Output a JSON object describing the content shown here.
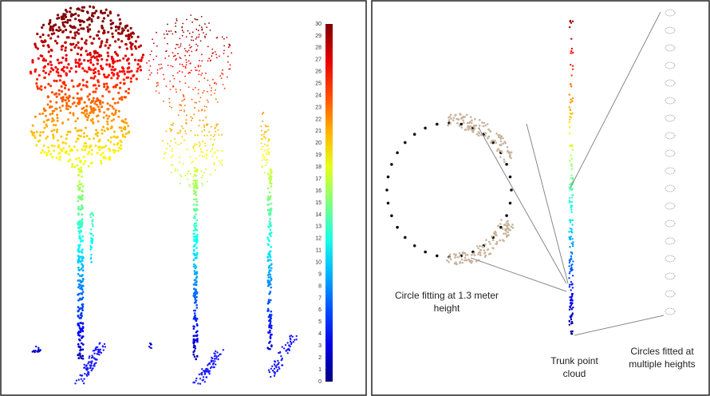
{
  "colorbar": {
    "ticks": [
      0,
      1,
      2,
      3,
      4,
      5,
      6,
      7,
      8,
      9,
      10,
      11,
      12,
      13,
      14,
      15,
      16,
      17,
      18,
      19,
      20,
      21,
      22,
      23,
      24,
      25,
      26,
      27,
      28,
      29,
      30
    ]
  },
  "annotations": {
    "circle_fitting": "Circle fitting at 1.3 meter height",
    "trunk": "Trunk point cloud",
    "circles_fitted": "Circles fitted at multiple heights"
  }
}
